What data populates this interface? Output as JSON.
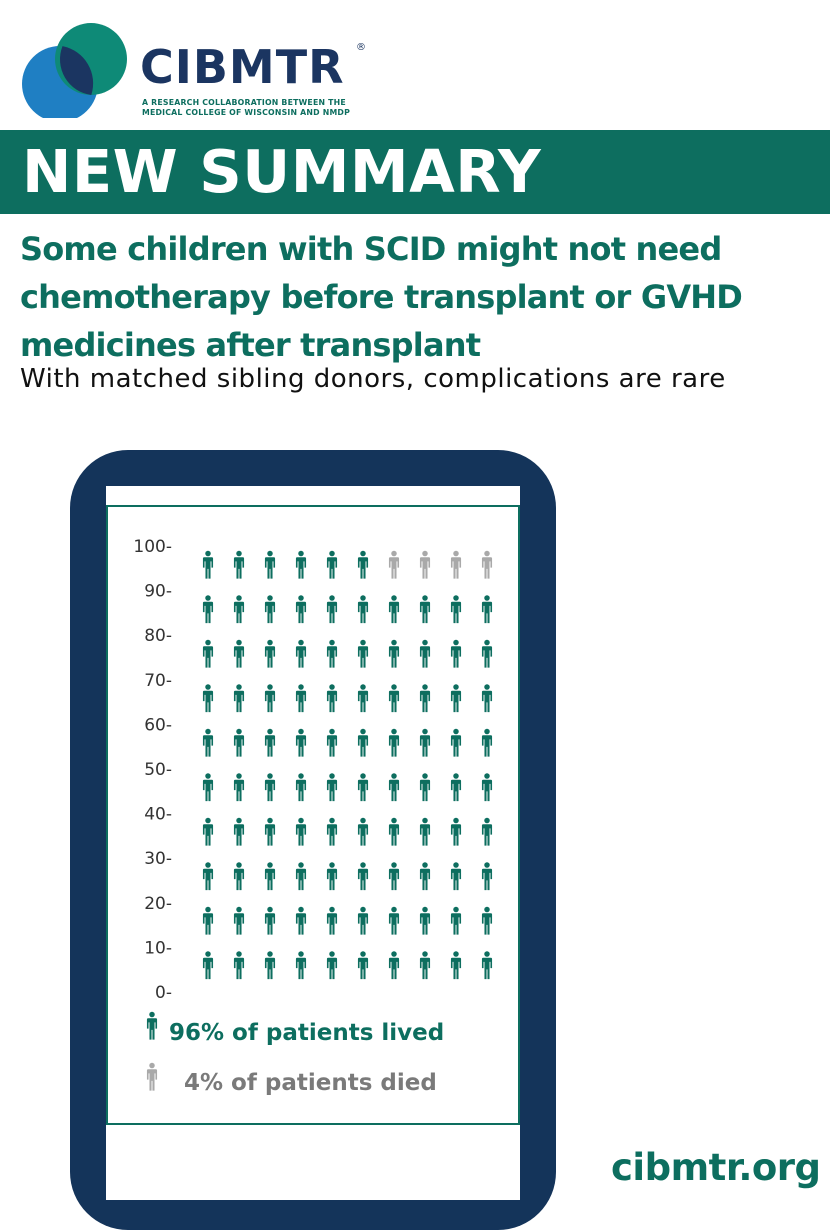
{
  "colors": {
    "brand_teal": "#0d6e5f",
    "brand_navy": "#1b3561",
    "device_frame": "#14345a",
    "lived": "#0d6e5f",
    "died": "#a9a9a9",
    "died_text": "#7a7a7a",
    "logo_circle_blue": "#1f7fc3"
  },
  "logo": {
    "name": "CIBMTR",
    "registered": "®",
    "tagline_line1": "A RESEARCH COLLABORATION BETWEEN THE",
    "tagline_line2": "MEDICAL COLLEGE OF WISCONSIN AND NMDP"
  },
  "banner": {
    "title": "NEW SUMMARY"
  },
  "headline": "Some children with SCID might not need chemotherapy before transplant or GVHD medicines after transplant",
  "subhead": "With matched sibling donors, complications are rare",
  "chart_data": {
    "type": "pictograph",
    "total_icons": 100,
    "rows": 10,
    "columns": 10,
    "series": [
      {
        "name": "96% of patients lived",
        "value": 96,
        "color": "#0d6e5f"
      },
      {
        "name": "4% of patients died",
        "value": 4,
        "color": "#a9a9a9"
      }
    ],
    "y_ticks": [
      "100-",
      "90-",
      "80-",
      "70-",
      "60-",
      "50-",
      "40-",
      "30-",
      "20-",
      "10-",
      "0-"
    ],
    "ylim": [
      0,
      100
    ],
    "legend_placement": "bottom"
  },
  "footer": {
    "site": "cibmtr.org"
  }
}
